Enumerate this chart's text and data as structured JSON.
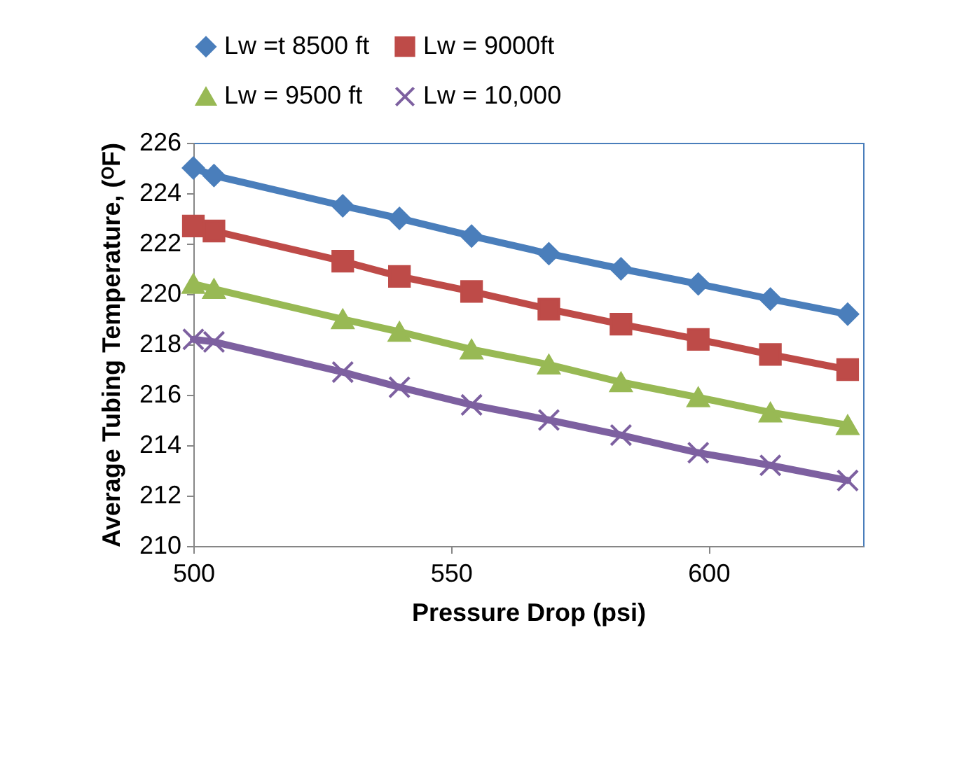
{
  "chart_data": {
    "type": "line",
    "xlabel": "Pressure Drop (psi)",
    "ylabel": "Average Tubing Temperature, (ᴼF)",
    "x": [
      500,
      504,
      529,
      540,
      554,
      569,
      583,
      598,
      612,
      627
    ],
    "series": [
      {
        "name": "Lw =t 8500 ft",
        "color": "#4a7ebb",
        "marker": "diamond",
        "values": [
          225.0,
          224.7,
          223.5,
          223.0,
          222.3,
          221.6,
          221.0,
          220.4,
          219.8,
          219.2
        ]
      },
      {
        "name": "Lw = 9000ft",
        "color": "#be4b48",
        "marker": "square",
        "values": [
          222.7,
          222.5,
          221.3,
          220.7,
          220.1,
          219.4,
          218.8,
          218.2,
          217.6,
          217.0
        ]
      },
      {
        "name": "Lw = 9500 ft",
        "color": "#98b954",
        "marker": "triangle",
        "values": [
          220.4,
          220.2,
          219.0,
          218.5,
          217.8,
          217.2,
          216.5,
          215.9,
          215.3,
          214.8
        ]
      },
      {
        "name": "Lw = 10,000",
        "color": "#7d60a0",
        "marker": "cross",
        "values": [
          218.2,
          218.1,
          216.9,
          216.3,
          215.6,
          215.0,
          214.4,
          213.7,
          213.2,
          212.6
        ]
      }
    ],
    "xlim": [
      500,
      630
    ],
    "xticks": [
      500,
      550,
      600
    ],
    "ylim": [
      210,
      226
    ],
    "yticks": [
      210,
      212,
      214,
      216,
      218,
      220,
      222,
      224,
      226
    ],
    "grid": false,
    "legend": "top",
    "line_style": "solid"
  }
}
